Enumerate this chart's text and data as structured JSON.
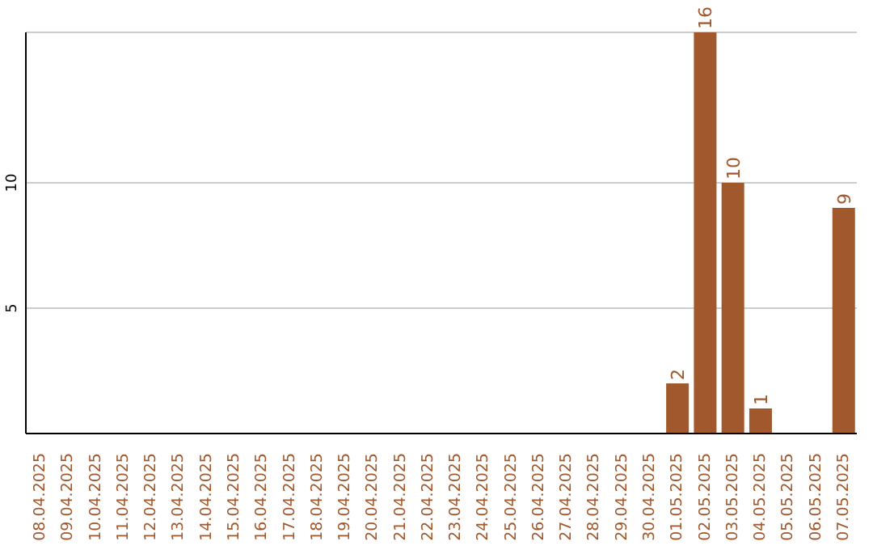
{
  "chart_data": {
    "type": "bar",
    "categories": [
      "08.04.2025",
      "09.04.2025",
      "10.04.2025",
      "11.04.2025",
      "12.04.2025",
      "13.04.2025",
      "14.04.2025",
      "15.04.2025",
      "16.04.2025",
      "17.04.2025",
      "18.04.2025",
      "19.04.2025",
      "20.04.2025",
      "21.04.2025",
      "22.04.2025",
      "23.04.2025",
      "24.04.2025",
      "25.04.2025",
      "26.04.2025",
      "27.04.2025",
      "28.04.2025",
      "29.04.2025",
      "30.04.2025",
      "01.05.2025",
      "02.05.2025",
      "03.05.2025",
      "04.05.2025",
      "05.05.2025",
      "06.05.2025",
      "07.05.2025"
    ],
    "values": [
      0,
      0,
      0,
      0,
      0,
      0,
      0,
      0,
      0,
      0,
      0,
      0,
      0,
      0,
      0,
      0,
      0,
      0,
      0,
      0,
      0,
      0,
      0,
      2,
      16,
      10,
      1,
      0,
      0,
      9
    ],
    "value_labels": [
      null,
      null,
      null,
      null,
      null,
      null,
      null,
      null,
      null,
      null,
      null,
      null,
      null,
      null,
      null,
      null,
      null,
      null,
      null,
      null,
      null,
      null,
      null,
      "2",
      "16",
      "10",
      "1",
      null,
      null,
      "9"
    ],
    "color": "#a0582c",
    "ylim": [
      0,
      16
    ],
    "yticks": [
      5,
      10
    ],
    "grid": "y"
  }
}
